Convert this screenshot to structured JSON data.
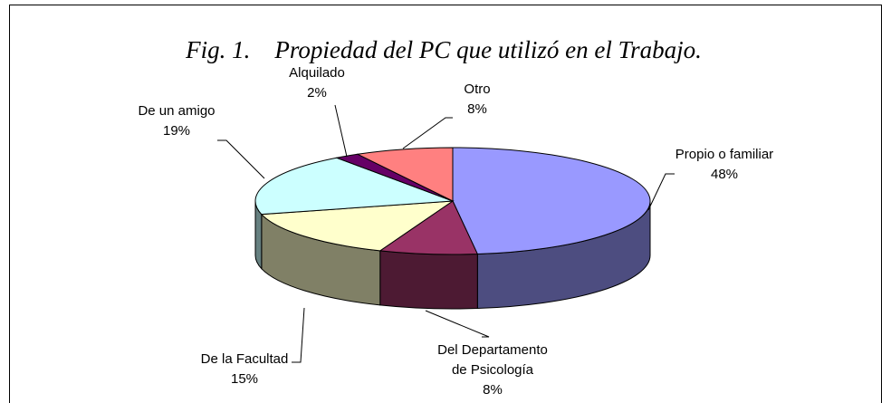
{
  "chart_data": {
    "type": "pie3d",
    "title": "Fig. 1.    Propiedad del PC que utilizó en el Trabajo.",
    "categories": [
      "Propio o familiar",
      "Del Departamento de Psicología",
      "De la Facultad",
      "De un amigo",
      "Alquilado",
      "Otro"
    ],
    "values": [
      48,
      8,
      15,
      19,
      2,
      8
    ],
    "value_labels": [
      "48%",
      "8%",
      "15%",
      "19%",
      "2%",
      "8%"
    ],
    "colors": [
      "#9999ff",
      "#993366",
      "#ffffcc",
      "#ccffff",
      "#660066",
      "#ff8080"
    ]
  }
}
